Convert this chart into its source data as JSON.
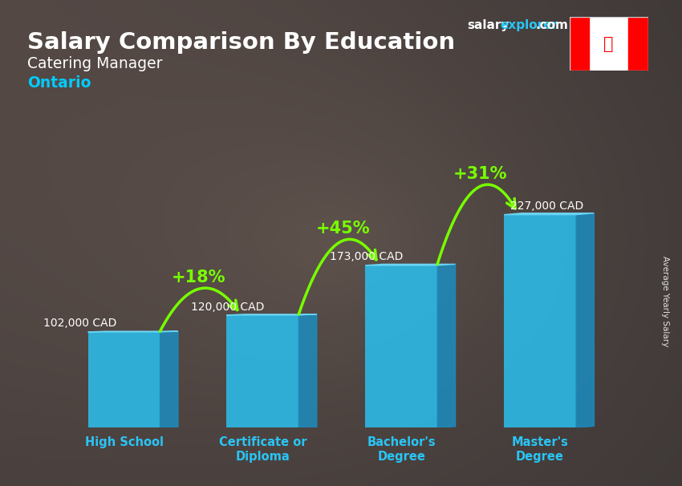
{
  "title": "Salary Comparison By Education",
  "subtitle": "Catering Manager",
  "location": "Ontario",
  "categories": [
    "High School",
    "Certificate or\nDiploma",
    "Bachelor's\nDegree",
    "Master's\nDegree"
  ],
  "values": [
    102000,
    120000,
    173000,
    227000
  ],
  "value_labels": [
    "102,000 CAD",
    "120,000 CAD",
    "173,000 CAD",
    "227,000 CAD"
  ],
  "pct_labels": [
    "+18%",
    "+45%",
    "+31%"
  ],
  "bar_front_color": "#29c5f6",
  "bar_side_color": "#1a8fc4",
  "bar_top_color": "#6dd9f8",
  "bar_alpha": 0.82,
  "bg_color": "#3a3a4a",
  "title_color": "#ffffff",
  "subtitle_color": "#ffffff",
  "location_color": "#00ccff",
  "value_label_color": "#ffffff",
  "pct_color": "#77ff00",
  "arrow_color": "#77ff00",
  "ylabel_text": "Average Yearly Salary",
  "website_salary_color": "#ffffff",
  "website_explorer_color": "#29c5f6",
  "ylim": [
    0,
    290000
  ],
  "fig_width": 8.5,
  "fig_height": 6.06,
  "dpi": 100
}
